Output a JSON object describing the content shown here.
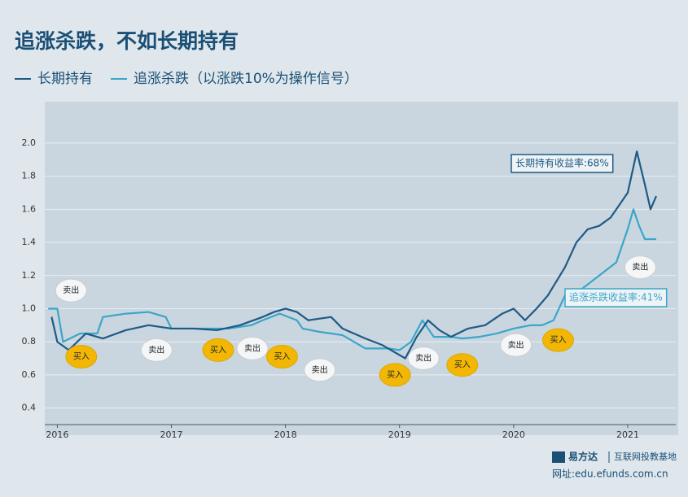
{
  "chart_data": {
    "type": "line",
    "title": "追涨杀跌，不如长期持有",
    "xlim": [
      2015.89,
      2021.35
    ],
    "xticks": [
      2016,
      2017,
      2018,
      2019,
      2020,
      2021
    ],
    "ylim": [
      0.3,
      2.25
    ],
    "yticks": [
      {
        "value": 0.4,
        "label": "0.4"
      },
      {
        "value": 0.6,
        "label": "0.6"
      },
      {
        "value": 0.8,
        "label": "0.8"
      },
      {
        "value": 1.0,
        "label": "1.0"
      },
      {
        "value": 1.2,
        "label": "1.2"
      },
      {
        "value": 1.4,
        "label": "1.4"
      },
      {
        "value": 1.6,
        "label": "1.6"
      },
      {
        "value": 1.8,
        "label": "1.8"
      },
      {
        "value": 2.0,
        "label": "2.0"
      }
    ],
    "grid": true,
    "series": [
      {
        "name": "长期持有",
        "color": "#1f5a86",
        "x": [
          2015.95,
          2016.0,
          2016.1,
          2016.25,
          2016.4,
          2016.6,
          2016.8,
          2017.0,
          2017.2,
          2017.4,
          2017.6,
          2017.8,
          2017.9,
          2018.0,
          2018.1,
          2018.2,
          2018.4,
          2018.5,
          2018.6,
          2018.7,
          2018.85,
          2019.0,
          2019.05,
          2019.15,
          2019.25,
          2019.35,
          2019.45,
          2019.6,
          2019.75,
          2019.9,
          2020.0,
          2020.1,
          2020.2,
          2020.3,
          2020.45,
          2020.55,
          2020.65,
          2020.75,
          2020.85,
          2020.95,
          2021.0,
          2021.08,
          2021.15,
          2021.2,
          2021.25
        ],
        "values": [
          0.95,
          0.8,
          0.75,
          0.85,
          0.82,
          0.87,
          0.9,
          0.88,
          0.88,
          0.87,
          0.9,
          0.95,
          0.98,
          1.0,
          0.98,
          0.93,
          0.95,
          0.88,
          0.85,
          0.82,
          0.78,
          0.72,
          0.7,
          0.83,
          0.93,
          0.87,
          0.83,
          0.88,
          0.9,
          0.97,
          1.0,
          0.93,
          1.0,
          1.08,
          1.25,
          1.4,
          1.48,
          1.5,
          1.55,
          1.65,
          1.7,
          1.95,
          1.75,
          1.6,
          1.68
        ]
      },
      {
        "name": "追涨杀跌（以涨跌10%为操作信号）",
        "color": "#3aa6c9",
        "x": [
          2015.92,
          2016.0,
          2016.05,
          2016.2,
          2016.35,
          2016.4,
          2016.6,
          2016.8,
          2016.95,
          2017.0,
          2017.3,
          2017.5,
          2017.7,
          2017.8,
          2017.95,
          2018.1,
          2018.15,
          2018.3,
          2018.4,
          2018.5,
          2018.7,
          2018.9,
          2019.0,
          2019.1,
          2019.2,
          2019.3,
          2019.45,
          2019.55,
          2019.7,
          2019.85,
          2020.0,
          2020.15,
          2020.25,
          2020.35,
          2020.45,
          2020.6,
          2020.75,
          2020.9,
          2021.0,
          2021.05,
          2021.1,
          2021.15,
          2021.25
        ],
        "values": [
          1.0,
          1.0,
          0.8,
          0.85,
          0.85,
          0.95,
          0.97,
          0.98,
          0.95,
          0.88,
          0.88,
          0.88,
          0.9,
          0.93,
          0.97,
          0.93,
          0.88,
          0.86,
          0.85,
          0.84,
          0.76,
          0.76,
          0.75,
          0.8,
          0.93,
          0.83,
          0.83,
          0.82,
          0.83,
          0.85,
          0.88,
          0.9,
          0.9,
          0.93,
          1.08,
          1.12,
          1.2,
          1.28,
          1.48,
          1.6,
          1.5,
          1.42,
          1.42
        ]
      }
    ],
    "annotations": [
      {
        "x": 2016.21,
        "y": 0.71,
        "text": "买入"
      },
      {
        "x": 2016.12,
        "y": 1.11,
        "text": "卖出"
      },
      {
        "x": 2016.87,
        "y": 0.75,
        "text": "卖出"
      },
      {
        "x": 2017.41,
        "y": 0.75,
        "text": "买入"
      },
      {
        "x": 2017.71,
        "y": 0.76,
        "text": "卖出"
      },
      {
        "x": 2017.97,
        "y": 0.71,
        "text": "买入"
      },
      {
        "x": 2018.3,
        "y": 0.63,
        "text": "卖出"
      },
      {
        "x": 2018.96,
        "y": 0.6,
        "text": "买入"
      },
      {
        "x": 2019.21,
        "y": 0.7,
        "text": "卖出"
      },
      {
        "x": 2019.55,
        "y": 0.66,
        "text": "买入"
      },
      {
        "x": 2020.02,
        "y": 0.78,
        "text": "卖出"
      },
      {
        "x": 2020.39,
        "y": 0.81,
        "text": "买入"
      },
      {
        "x": 2021.11,
        "y": 1.25,
        "text": "卖出"
      }
    ],
    "callouts": [
      "长期持有收益率:68%",
      "追涨杀跌收益率:41%"
    ],
    "source": [
      "易方达",
      "互联网投教基地",
      "网址:edu.efunds.com.cn"
    ]
  }
}
